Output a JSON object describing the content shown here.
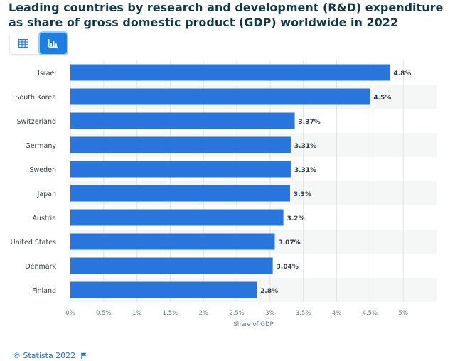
{
  "header": {
    "title": "Leading countries by research and development (R&D) expenditure as share of gross domestic product (GDP) worldwide in 2022"
  },
  "toolbar": {
    "table_view_icon": "table-icon",
    "chart_view_icon": "bar-chart-icon"
  },
  "footer": {
    "copyright": "© Statista 2022",
    "flag_icon": "flag-icon"
  },
  "colors": {
    "bar": "#2876dd",
    "accent": "#1e7fe0",
    "stripe": "#f5f7f7",
    "grid": "#dfe3e5"
  },
  "chart_data": {
    "type": "bar",
    "orientation": "horizontal",
    "categories": [
      "Israel",
      "South Korea",
      "Switzerland",
      "Germany",
      "Sweden",
      "Japan",
      "Austria",
      "United States",
      "Denmark",
      "Finland"
    ],
    "values": [
      4.8,
      4.5,
      3.37,
      3.31,
      3.31,
      3.3,
      3.2,
      3.07,
      3.04,
      2.8
    ],
    "value_labels": [
      "4.8%",
      "4.5%",
      "3.37%",
      "3.31%",
      "3.31%",
      "3.3%",
      "3.2%",
      "3.07%",
      "3.04%",
      "2.8%"
    ],
    "xlabel": "Share of GDP",
    "xlim": [
      0,
      5.5
    ],
    "xticks": [
      0,
      0.5,
      1,
      1.5,
      2,
      2.5,
      3,
      3.5,
      4,
      4.5,
      5
    ],
    "xtick_labels": [
      "0%",
      "0.5%",
      "1%",
      "1.5%",
      "2%",
      "2.5%",
      "3%",
      "3.5%",
      "4%",
      "4.5%",
      "5%"
    ],
    "grid": true
  }
}
